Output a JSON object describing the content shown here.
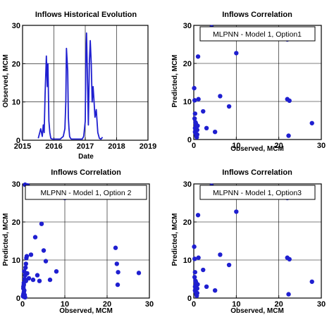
{
  "charts": [
    {
      "type": "line",
      "title": "Inflows Historical Evolution",
      "xlabel": "Date",
      "ylabel": "Observed, MCM",
      "legend": "",
      "xlim": [
        2015,
        2019
      ],
      "ylim": [
        0,
        30
      ],
      "xticks": [
        2015,
        2016,
        2017,
        2018,
        2019
      ],
      "yticks": [
        0,
        10,
        20,
        30
      ],
      "grid": true,
      "color": "#1f1fd0",
      "x": [
        2015.5,
        2015.58,
        2015.63,
        2015.66,
        2015.69,
        2015.72,
        2015.76,
        2015.79,
        2015.81,
        2015.84,
        2015.87,
        2015.9,
        2015.95,
        2016.0,
        2016.1,
        2016.2,
        2016.3,
        2016.35,
        2016.38,
        2016.4,
        2016.42,
        2016.44,
        2016.46,
        2016.48,
        2016.5,
        2016.53,
        2016.56,
        2016.6,
        2016.7,
        2016.8,
        2016.9,
        2016.95,
        2017.0,
        2017.02,
        2017.04,
        2017.06,
        2017.08,
        2017.1,
        2017.13,
        2017.16,
        2017.19,
        2017.22,
        2017.25,
        2017.28,
        2017.31,
        2017.35,
        2017.4,
        2017.45,
        2017.5,
        2017.55
      ],
      "y": [
        0.5,
        3,
        1,
        4,
        2,
        12,
        22,
        14,
        20,
        5,
        2,
        0.5,
        0.3,
        0.3,
        0.3,
        0.3,
        1,
        3,
        10,
        24,
        21,
        18,
        6,
        3,
        1,
        0.5,
        0.3,
        0.3,
        0.3,
        0.3,
        0.3,
        1,
        5,
        22,
        28,
        20,
        12,
        4,
        20,
        26,
        20,
        10,
        14,
        10,
        6,
        8,
        2,
        0.5,
        0.3,
        0.8
      ]
    },
    {
      "type": "scatter",
      "title": "Inflows Correlation",
      "legend": "MLPNN - Model 1, Option1",
      "xlabel": "Observed, MCM",
      "ylabel": "Predicted, MCM",
      "xlim": [
        0,
        30
      ],
      "ylim": [
        0,
        30
      ],
      "xticks": [
        0,
        10,
        20,
        30
      ],
      "yticks": [
        0,
        10,
        20,
        30
      ],
      "grid": true,
      "color": "#1f1fd0",
      "x": [
        0.1,
        0.2,
        0.3,
        0.2,
        0.4,
        0.5,
        0.3,
        0.6,
        0.8,
        0.9,
        0.3,
        0.4,
        0.6,
        0.7,
        1.0,
        1.1,
        0.5,
        0.8,
        2.2,
        3.0,
        3.8,
        4.2,
        5.0,
        6.2,
        8.3,
        10.0,
        22.0,
        22.0,
        22.5,
        22.3,
        27.8
      ],
      "y": [
        13.5,
        10.3,
        6.8,
        5.5,
        4.5,
        3.8,
        3.0,
        2.8,
        2.5,
        3.6,
        2.0,
        1.7,
        1.0,
        0.6,
        21.8,
        10.6,
        4.2,
        1.3,
        7.4,
        3.0,
        27.8,
        29.5,
        2.0,
        11.4,
        8.7,
        22.7,
        26.3,
        10.6,
        10.2,
        1.0,
        4.3
      ]
    },
    {
      "type": "scatter",
      "title": "Inflows Correlation",
      "legend": "MLPNN - Model 1, Option 2",
      "xlabel": "Observed, MCM",
      "ylabel": "Predicted, MCM",
      "xlim": [
        0,
        30
      ],
      "ylim": [
        0,
        30
      ],
      "xticks": [
        0,
        10,
        20,
        30
      ],
      "yticks": [
        0,
        10,
        20,
        30
      ],
      "grid": true,
      "color": "#1f1fd0",
      "x": [
        0.1,
        0.2,
        0.3,
        0.4,
        0.2,
        0.3,
        0.5,
        0.6,
        0.4,
        0.7,
        0.8,
        0.9,
        1.0,
        0.2,
        0.3,
        0.5,
        0.8,
        1.1,
        0.6,
        1.2,
        1.5,
        2.0,
        2.5,
        3.0,
        3.5,
        4.0,
        4.5,
        5.0,
        5.5,
        6.5,
        8.0,
        10.0,
        22.0,
        22.3,
        22.5,
        22.6,
        27.5,
        0.4,
        0.6
      ],
      "y": [
        0.5,
        1.0,
        1.5,
        2.0,
        3.0,
        4.0,
        5.0,
        6.0,
        7.0,
        8.0,
        9.0,
        10.5,
        11.0,
        2.5,
        3.5,
        0.8,
        4.5,
        6.5,
        29.8,
        29.6,
        5.2,
        11.4,
        4.8,
        16.0,
        6.0,
        4.5,
        19.5,
        12.5,
        9.7,
        4.8,
        7.0,
        26.3,
        13.2,
        9.0,
        3.5,
        6.8,
        6.6,
        0.3,
        0.2
      ]
    },
    {
      "type": "scatter",
      "title": "Inflows Correlation",
      "legend": "MLPNN - Model 1, Option3",
      "xlabel": "Observed, MCM",
      "ylabel": "Predicted, MCM",
      "xlim": [
        0,
        30
      ],
      "ylim": [
        0,
        30
      ],
      "xticks": [
        0,
        10,
        20,
        30
      ],
      "yticks": [
        0,
        10,
        20,
        30
      ],
      "grid": true,
      "color": "#1f1fd0",
      "x": [
        0.1,
        0.2,
        0.3,
        0.2,
        0.4,
        0.5,
        0.3,
        0.6,
        0.8,
        0.9,
        0.3,
        0.4,
        0.6,
        0.7,
        1.0,
        1.1,
        0.5,
        0.8,
        2.2,
        3.0,
        3.8,
        4.2,
        5.0,
        6.2,
        8.3,
        10.0,
        22.0,
        22.0,
        22.5,
        22.3,
        27.8
      ],
      "y": [
        13.5,
        10.3,
        6.8,
        5.5,
        4.5,
        3.8,
        3.0,
        2.8,
        2.5,
        3.6,
        2.0,
        1.7,
        1.0,
        0.6,
        21.8,
        10.6,
        4.2,
        1.3,
        7.4,
        3.0,
        27.8,
        29.5,
        2.0,
        11.4,
        8.7,
        22.7,
        26.3,
        10.6,
        10.2,
        1.0,
        4.3
      ]
    }
  ]
}
